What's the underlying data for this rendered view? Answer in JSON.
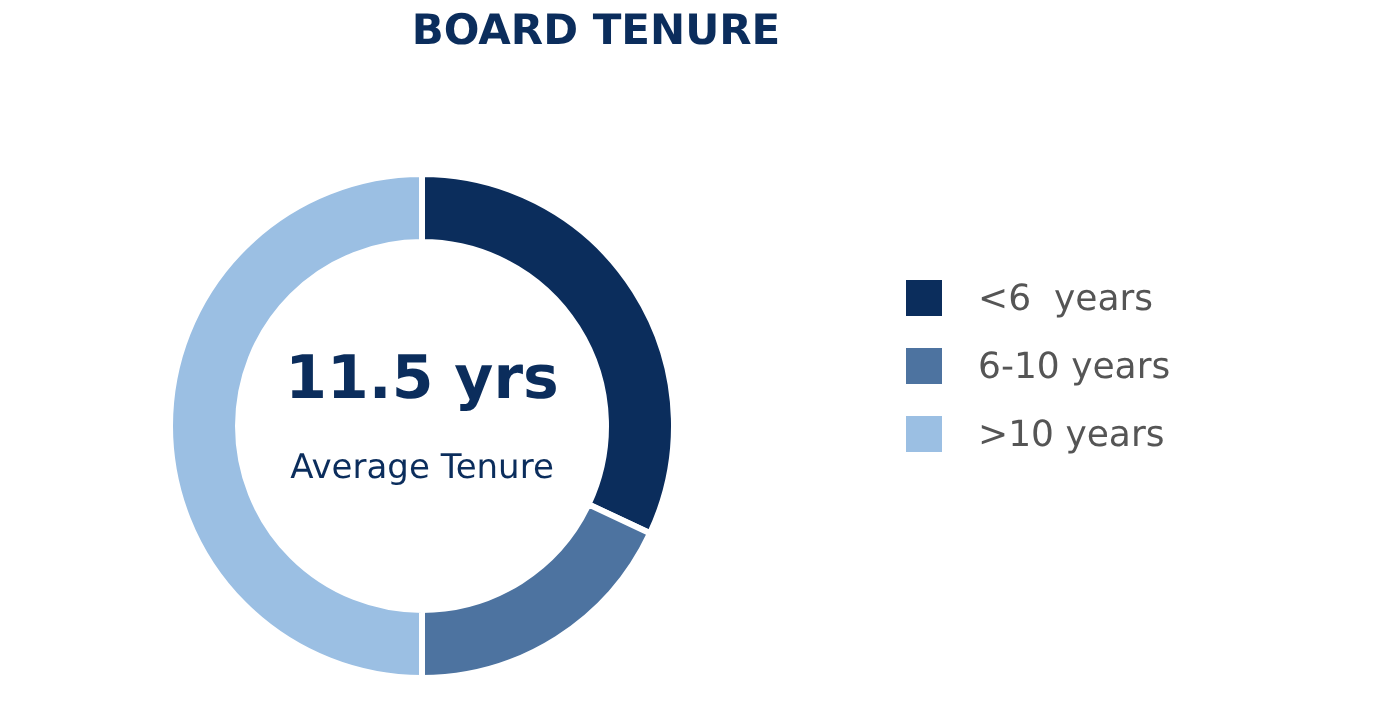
{
  "chart_data": {
    "type": "donut",
    "title": "BOARD TENURE",
    "categories": [
      "<6  years",
      "6-10 years",
      ">10 years"
    ],
    "values": [
      32,
      18,
      50
    ],
    "colors": [
      "#0b2d5c",
      "#4d73a0",
      "#9bbfe3"
    ],
    "annotations": [
      "11.5 yrs",
      "Average Tenure"
    ],
    "legend": "right"
  }
}
